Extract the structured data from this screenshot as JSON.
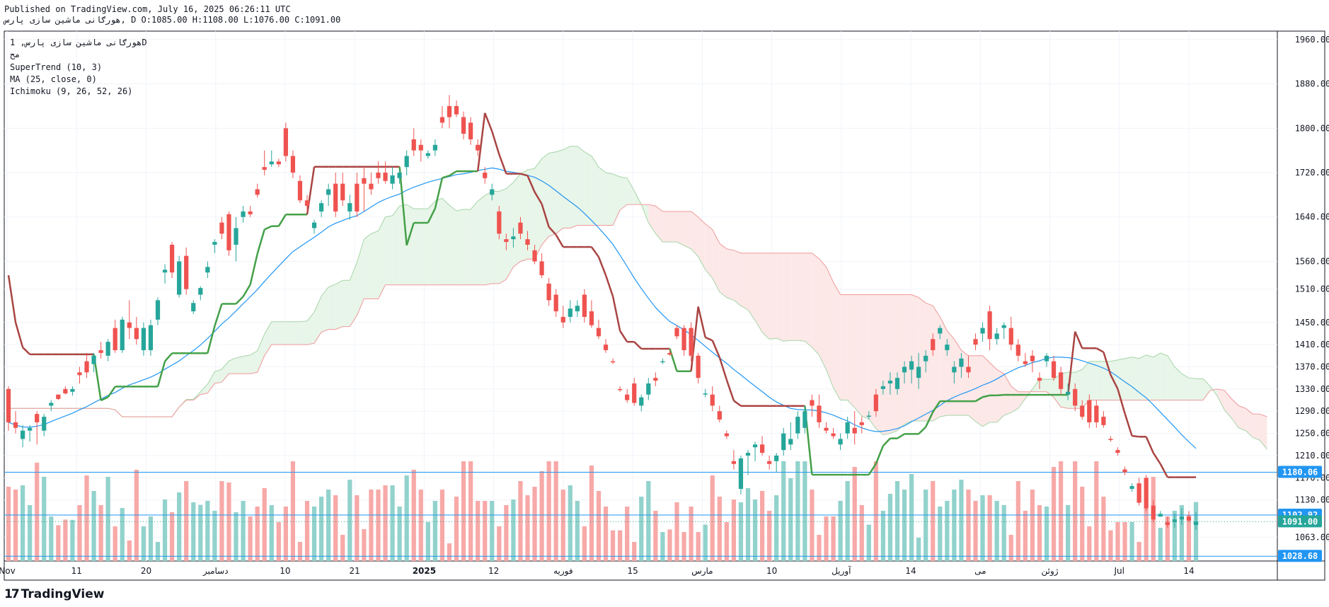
{
  "header": {
    "published": "Published on TradingView.com, July 16, 2025 06:26:11 UTC",
    "ohlc": "هورګانی ماشین سازی پارس, D O:1085.00 H:1108.00 L:1076.00 C:1091.00"
  },
  "legend": {
    "title": "هورګانی ماشین سازی پارس, 1D",
    "subtitle": "مح",
    "indicators": [
      "SuperTrend (10, 3)",
      "MA (25, close, 0)",
      "Ichimoku (9, 26, 52, 26)"
    ]
  },
  "brand": {
    "mark": "17",
    "name": "TradingView"
  },
  "colors": {
    "up": "#26a69a",
    "down": "#ef5350",
    "upVol": "#92d2cc",
    "downVol": "#f7a9a7",
    "supertrendUp": "#43a047",
    "supertrendDown": "#a94442",
    "ma": "#2196f3",
    "cloudBull": "#e8f5e9",
    "cloudBear": "#fde8e8",
    "hline": "#2196f3",
    "lastPrice": "#26a69a"
  },
  "chart_data": {
    "type": "candlestick",
    "title": "",
    "xlabel": "",
    "ylabel": "",
    "ylim": [
      1020,
      1975
    ],
    "y_ticks": [
      1063,
      1130,
      1170,
      1210,
      1250,
      1290,
      1330,
      1370,
      1410,
      1450,
      1510,
      1560,
      1640,
      1720,
      1800,
      1880,
      1960
    ],
    "x_ticks": [
      "Nov",
      "11",
      "20",
      "دسامبر",
      "10",
      "21",
      "2025",
      "12",
      "فوریه",
      "15",
      "مارس",
      "10",
      "آوریل",
      "14",
      "می",
      "ژوئن",
      "Jul",
      "14"
    ],
    "grid": true,
    "horizontal_lines": [
      1180.06,
      1102.92,
      1028.68
    ],
    "last_price": 1091.0,
    "price_labels": [
      {
        "value": 1180.06,
        "label": "1180.06",
        "kind": "line"
      },
      {
        "value": 1102.92,
        "label": "1102.92",
        "kind": "line"
      },
      {
        "value": 1091.0,
        "label": "1091.00",
        "kind": "last"
      },
      {
        "value": 1028.68,
        "label": "1028.68",
        "kind": "line"
      }
    ],
    "candles": [
      [
        1330,
        1335,
        1255,
        1270
      ],
      [
        1270,
        1290,
        1250,
        1260
      ],
      [
        1240,
        1265,
        1225,
        1255
      ],
      [
        1255,
        1265,
        1235,
        1260
      ],
      [
        1285,
        1290,
        1230,
        1270
      ],
      [
        1255,
        1285,
        1245,
        1280
      ],
      [
        1300,
        1310,
        1290,
        1305
      ],
      [
        1320,
        1320,
        1310,
        1312
      ],
      [
        1330,
        1335,
        1320,
        1322
      ],
      [
        1325,
        1335,
        1318,
        1330
      ],
      [
        1360,
        1370,
        1340,
        1355
      ],
      [
        1380,
        1395,
        1350,
        1360
      ],
      [
        1375,
        1395,
        1360,
        1390
      ],
      [
        1400,
        1415,
        1385,
        1395
      ],
      [
        1390,
        1420,
        1380,
        1415
      ],
      [
        1440,
        1455,
        1395,
        1400
      ],
      [
        1400,
        1460,
        1395,
        1455
      ],
      [
        1450,
        1490,
        1420,
        1440
      ],
      [
        1440,
        1460,
        1410,
        1420
      ],
      [
        1400,
        1450,
        1390,
        1440
      ],
      [
        1400,
        1455,
        1390,
        1445
      ],
      [
        1455,
        1495,
        1445,
        1490
      ],
      [
        1540,
        1555,
        1520,
        1545
      ],
      [
        1590,
        1595,
        1530,
        1540
      ],
      [
        1500,
        1570,
        1495,
        1560
      ],
      [
        1570,
        1585,
        1500,
        1510
      ],
      [
        1470,
        1490,
        1465,
        1485
      ],
      [
        1500,
        1515,
        1490,
        1512
      ],
      [
        1540,
        1560,
        1530,
        1550
      ],
      [
        1590,
        1600,
        1575,
        1595
      ],
      [
        1630,
        1640,
        1600,
        1610
      ],
      [
        1645,
        1650,
        1570,
        1580
      ],
      [
        1590,
        1640,
        1560,
        1620
      ],
      [
        1640,
        1660,
        1630,
        1650
      ],
      [
        1650,
        1660,
        1640,
        1645
      ],
      [
        1690,
        1700,
        1675,
        1680
      ],
      [
        1730,
        1760,
        1715,
        1725
      ],
      [
        1735,
        1760,
        1730,
        1740
      ],
      [
        1740,
        1745,
        1730,
        1735
      ],
      [
        1800,
        1810,
        1740,
        1750
      ],
      [
        1750,
        1760,
        1710,
        1720
      ],
      [
        1705,
        1715,
        1665,
        1670
      ],
      [
        1670,
        1680,
        1650,
        1660
      ],
      [
        1620,
        1635,
        1610,
        1630
      ],
      [
        1650,
        1670,
        1640,
        1665
      ],
      [
        1680,
        1700,
        1660,
        1690
      ],
      [
        1700,
        1720,
        1640,
        1650
      ],
      [
        1700,
        1720,
        1660,
        1670
      ],
      [
        1650,
        1680,
        1635,
        1665
      ],
      [
        1700,
        1720,
        1640,
        1650
      ],
      [
        1710,
        1730,
        1650,
        1700
      ],
      [
        1700,
        1720,
        1680,
        1690
      ],
      [
        1720,
        1740,
        1700,
        1710
      ],
      [
        1720,
        1740,
        1700,
        1705
      ],
      [
        1700,
        1730,
        1690,
        1715
      ],
      [
        1710,
        1725,
        1700,
        1720
      ],
      [
        1730,
        1760,
        1715,
        1750
      ],
      [
        1780,
        1800,
        1750,
        1760
      ],
      [
        1770,
        1780,
        1740,
        1760
      ],
      [
        1750,
        1760,
        1745,
        1755
      ],
      [
        1760,
        1780,
        1750,
        1770
      ],
      [
        1820,
        1840,
        1800,
        1810
      ],
      [
        1840,
        1860,
        1800,
        1820
      ],
      [
        1840,
        1850,
        1820,
        1825
      ],
      [
        1820,
        1830,
        1780,
        1790
      ],
      [
        1810,
        1820,
        1770,
        1780
      ],
      [
        1770,
        1780,
        1750,
        1760
      ],
      [
        1720,
        1730,
        1700,
        1710
      ],
      [
        1680,
        1700,
        1670,
        1690
      ],
      [
        1650,
        1660,
        1600,
        1610
      ],
      [
        1600,
        1610,
        1580,
        1595
      ],
      [
        1600,
        1620,
        1585,
        1605
      ],
      [
        1630,
        1640,
        1600,
        1610
      ],
      [
        1600,
        1615,
        1580,
        1590
      ],
      [
        1580,
        1590,
        1555,
        1560
      ],
      [
        1560,
        1575,
        1530,
        1535
      ],
      [
        1520,
        1530,
        1480,
        1490
      ],
      [
        1500,
        1510,
        1460,
        1470
      ],
      [
        1460,
        1480,
        1440,
        1450
      ],
      [
        1460,
        1490,
        1450,
        1475
      ],
      [
        1470,
        1490,
        1460,
        1480
      ],
      [
        1500,
        1510,
        1450,
        1460
      ],
      [
        1470,
        1490,
        1440,
        1445
      ],
      [
        1440,
        1455,
        1420,
        1425
      ],
      [
        1410,
        1420,
        1395,
        1400
      ],
      [
        1380,
        1385,
        1375,
        1378
      ],
      [
        1330,
        1335,
        1325,
        1328
      ],
      [
        1320,
        1330,
        1305,
        1310
      ],
      [
        1340,
        1350,
        1300,
        1305
      ],
      [
        1300,
        1320,
        1290,
        1315
      ],
      [
        1320,
        1350,
        1310,
        1340
      ],
      [
        1350,
        1360,
        1335,
        1345
      ],
      [
        1380,
        1385,
        1375,
        1380
      ],
      [
        1395,
        1400,
        1390,
        1392
      ],
      [
        1440,
        1445,
        1420,
        1425
      ],
      [
        1440,
        1445,
        1390,
        1400
      ],
      [
        1440,
        1450,
        1380,
        1390
      ],
      [
        1390,
        1395,
        1340,
        1350
      ],
      [
        1320,
        1330,
        1315,
        1322
      ],
      [
        1320,
        1335,
        1290,
        1300
      ],
      [
        1290,
        1300,
        1270,
        1275
      ],
      [
        1250,
        1255,
        1240,
        1245
      ],
      [
        1200,
        1220,
        1185,
        1195
      ],
      [
        1150,
        1210,
        1140,
        1205
      ],
      [
        1210,
        1220,
        1175,
        1215
      ],
      [
        1225,
        1235,
        1200,
        1230
      ],
      [
        1230,
        1245,
        1210,
        1215
      ],
      [
        1200,
        1210,
        1185,
        1195
      ],
      [
        1200,
        1215,
        1180,
        1210
      ],
      [
        1220,
        1260,
        1210,
        1250
      ],
      [
        1230,
        1270,
        1220,
        1240
      ],
      [
        1250,
        1290,
        1240,
        1280
      ],
      [
        1260,
        1300,
        1250,
        1290
      ],
      [
        1310,
        1320,
        1280,
        1300
      ],
      [
        1300,
        1320,
        1260,
        1270
      ],
      [
        1260,
        1270,
        1250,
        1255
      ],
      [
        1250,
        1260,
        1240,
        1245
      ],
      [
        1230,
        1250,
        1220,
        1240
      ],
      [
        1250,
        1280,
        1240,
        1270
      ],
      [
        1260,
        1290,
        1230,
        1250
      ],
      [
        1270,
        1280,
        1250,
        1265
      ],
      [
        1280,
        1290,
        1275,
        1282
      ],
      [
        1320,
        1330,
        1280,
        1290
      ],
      [
        1330,
        1345,
        1320,
        1335
      ],
      [
        1340,
        1360,
        1320,
        1345
      ],
      [
        1330,
        1360,
        1320,
        1350
      ],
      [
        1360,
        1380,
        1340,
        1370
      ],
      [
        1365,
        1390,
        1340,
        1380
      ],
      [
        1350,
        1395,
        1330,
        1370
      ],
      [
        1380,
        1400,
        1360,
        1390
      ],
      [
        1420,
        1430,
        1390,
        1400
      ],
      [
        1430,
        1445,
        1420,
        1440
      ],
      [
        1400,
        1420,
        1390,
        1410
      ],
      [
        1360,
        1380,
        1340,
        1370
      ],
      [
        1370,
        1395,
        1350,
        1385
      ],
      [
        1370,
        1390,
        1350,
        1360
      ],
      [
        1420,
        1430,
        1400,
        1410
      ],
      [
        1430,
        1450,
        1415,
        1440
      ],
      [
        1470,
        1480,
        1400,
        1420
      ],
      [
        1420,
        1440,
        1410,
        1430
      ],
      [
        1440,
        1450,
        1420,
        1445
      ],
      [
        1440,
        1460,
        1400,
        1410
      ],
      [
        1410,
        1420,
        1380,
        1390
      ],
      [
        1380,
        1395,
        1370,
        1375
      ],
      [
        1390,
        1400,
        1360,
        1380
      ],
      [
        1350,
        1360,
        1330,
        1345
      ],
      [
        1380,
        1395,
        1370,
        1390
      ],
      [
        1380,
        1390,
        1345,
        1350
      ],
      [
        1360,
        1370,
        1320,
        1330
      ],
      [
        1320,
        1340,
        1310,
        1325
      ],
      [
        1330,
        1340,
        1290,
        1300
      ],
      [
        1300,
        1310,
        1275,
        1280
      ],
      [
        1310,
        1320,
        1260,
        1270
      ],
      [
        1300,
        1310,
        1260,
        1270
      ],
      [
        1280,
        1290,
        1260,
        1265
      ],
      [
        1240,
        1245,
        1235,
        1238
      ],
      [
        1220,
        1225,
        1210,
        1215
      ],
      [
        1185,
        1190,
        1175,
        1180
      ],
      [
        1150,
        1160,
        1145,
        1155
      ],
      [
        1160,
        1170,
        1120,
        1125
      ],
      [
        1170,
        1175,
        1110,
        1115
      ],
      [
        1120,
        1130,
        1090,
        1095
      ],
      [
        1100,
        1110,
        1100,
        1105
      ],
      [
        1090,
        1100,
        1080,
        1085
      ],
      [
        1090,
        1105,
        1080,
        1095
      ],
      [
        1095,
        1115,
        1085,
        1100
      ],
      [
        1100,
        1110,
        1090,
        1093
      ],
      [
        1085,
        1108,
        1076,
        1091
      ]
    ]
  }
}
